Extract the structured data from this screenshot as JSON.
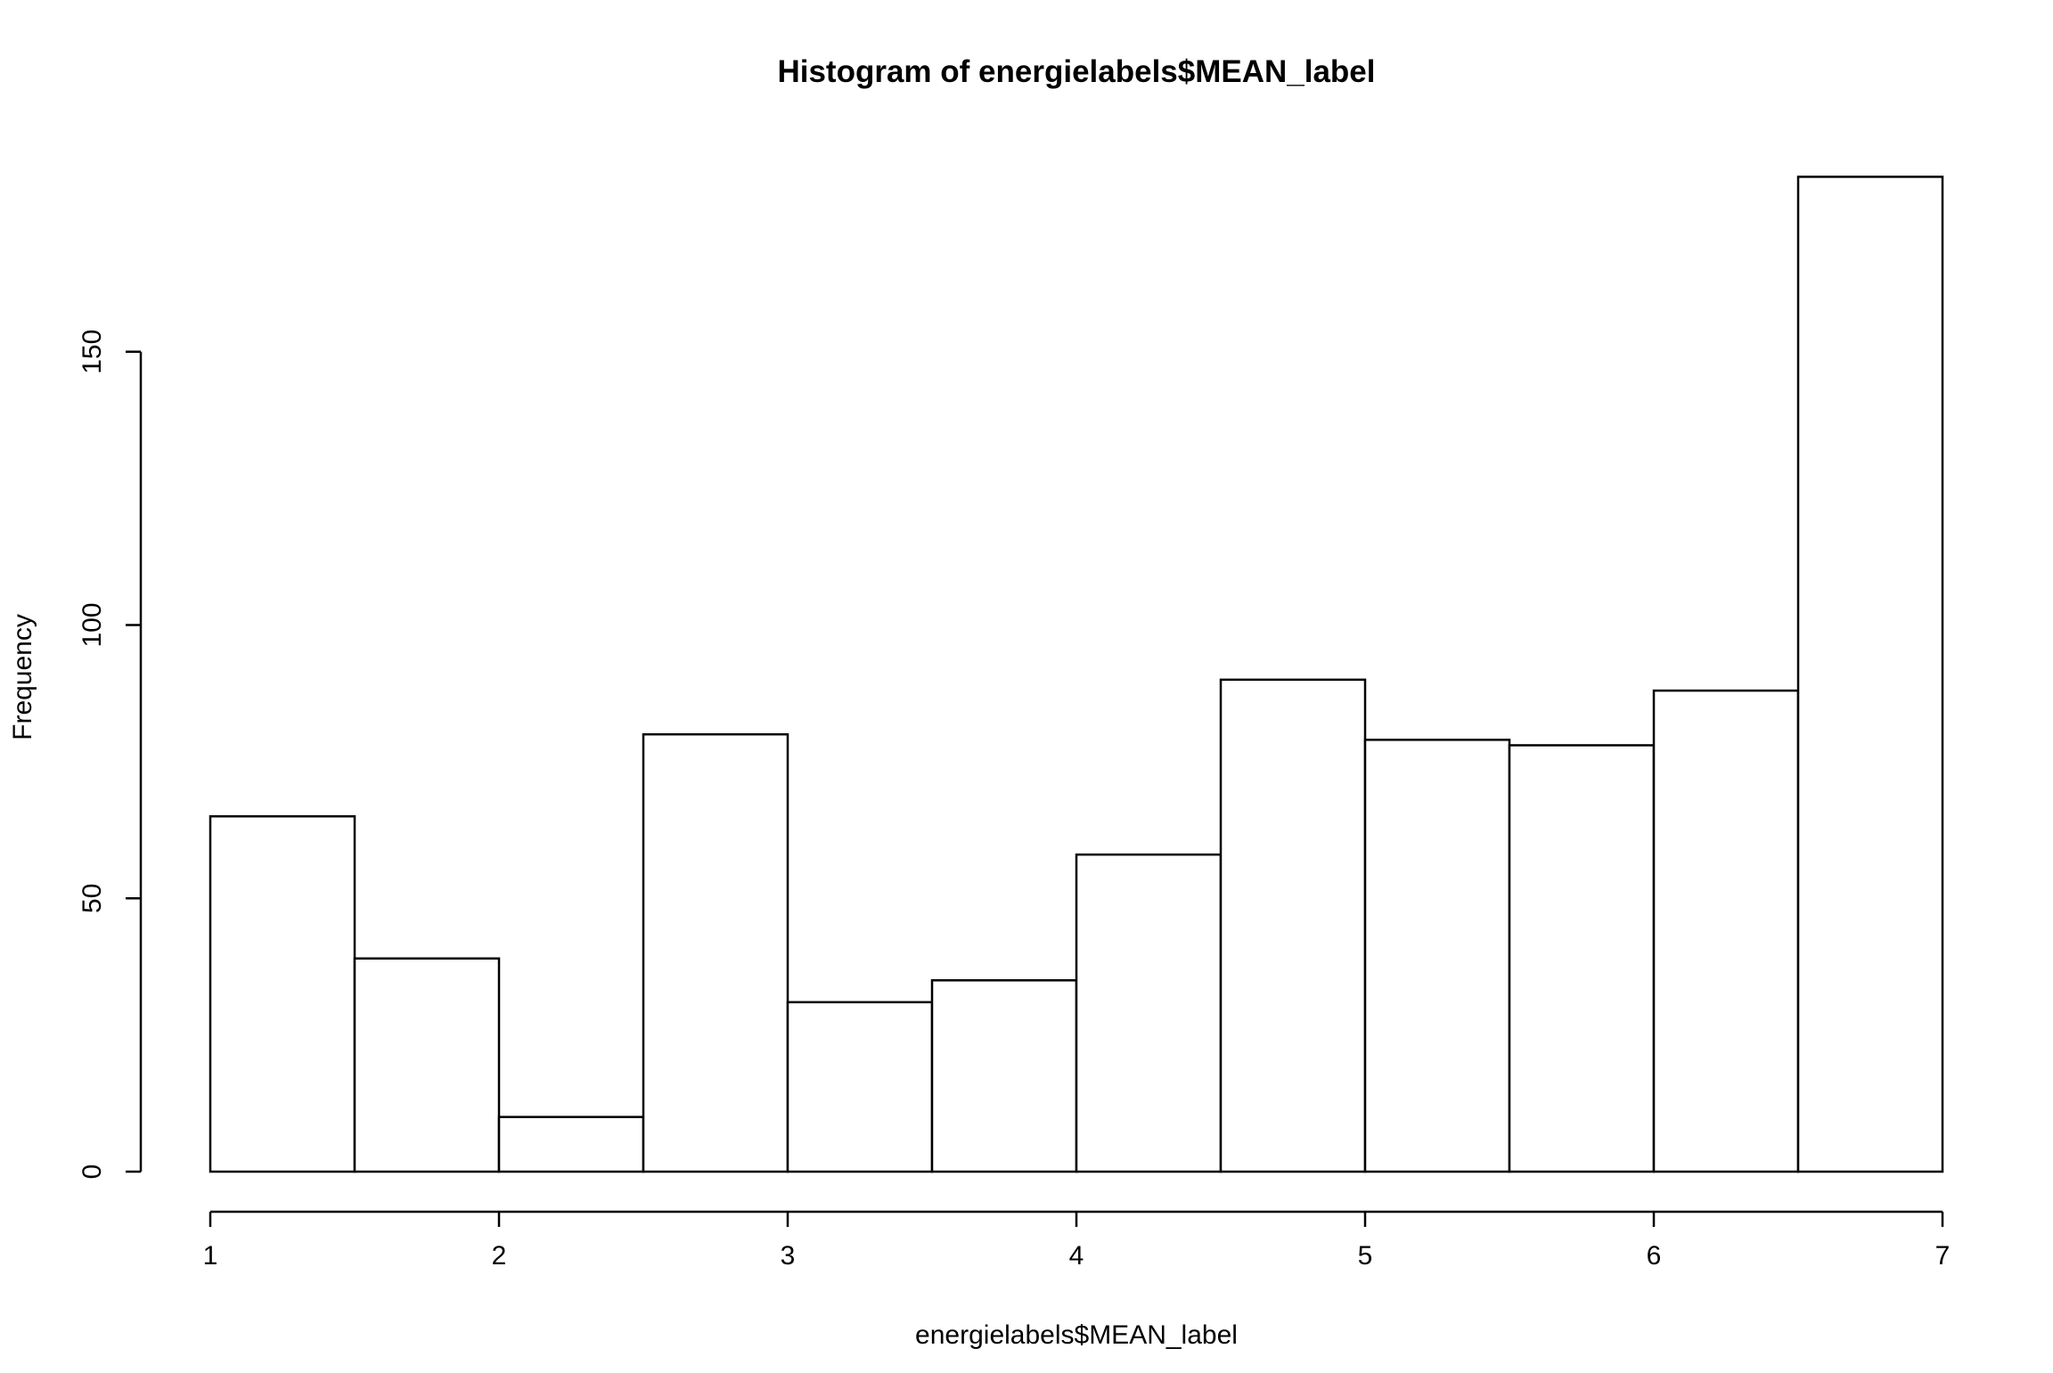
{
  "chart_data": {
    "type": "bar",
    "title": "Histogram of energielabels$MEAN_label",
    "xlabel": "energielabels$MEAN_label",
    "ylabel": "Frequency",
    "bins": [
      {
        "start": 1.0,
        "end": 1.5,
        "count": 65
      },
      {
        "start": 1.5,
        "end": 2.0,
        "count": 39
      },
      {
        "start": 2.0,
        "end": 2.5,
        "count": 10
      },
      {
        "start": 2.5,
        "end": 3.0,
        "count": 80
      },
      {
        "start": 3.0,
        "end": 3.5,
        "count": 31
      },
      {
        "start": 3.5,
        "end": 4.0,
        "count": 35
      },
      {
        "start": 4.0,
        "end": 4.5,
        "count": 58
      },
      {
        "start": 4.5,
        "end": 5.0,
        "count": 90
      },
      {
        "start": 5.0,
        "end": 5.5,
        "count": 79
      },
      {
        "start": 5.5,
        "end": 6.0,
        "count": 78
      },
      {
        "start": 6.0,
        "end": 6.5,
        "count": 88
      },
      {
        "start": 6.5,
        "end": 7.0,
        "count": 182
      }
    ],
    "xlim": [
      1,
      7
    ],
    "ylim": [
      0,
      182
    ],
    "x_ticks": [
      1,
      2,
      3,
      4,
      5,
      6,
      7
    ],
    "y_ticks": [
      0,
      50,
      100,
      150
    ],
    "grid": false,
    "colors": {
      "bar_fill": "#ffffff",
      "bar_stroke": "#000000"
    }
  }
}
